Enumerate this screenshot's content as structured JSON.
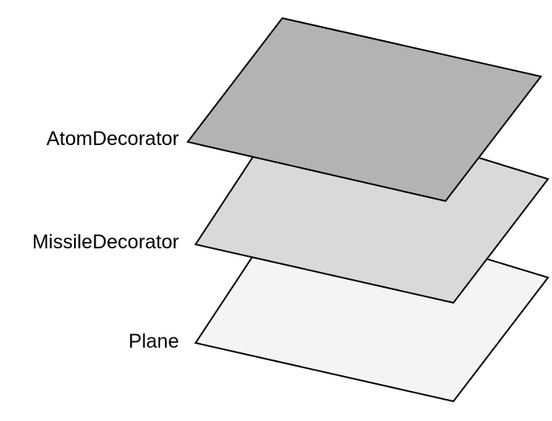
{
  "layers": [
    {
      "label": "Plane",
      "fill": "#f4f4f4"
    },
    {
      "label": "MissileDecorator",
      "fill": "#d9d9d9"
    },
    {
      "label": "AtomDecorator",
      "fill": "#b3b3b3"
    }
  ]
}
